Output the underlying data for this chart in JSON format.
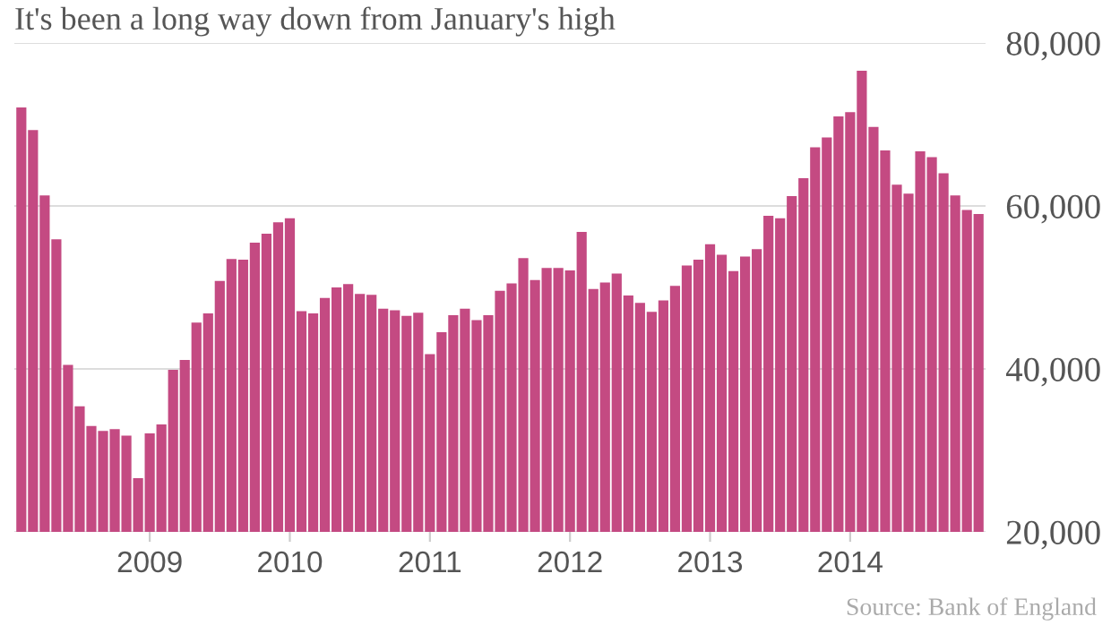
{
  "chart_data": {
    "type": "bar",
    "title": "It's been a long way down from January's high",
    "categories": [
      null,
      null,
      null,
      null,
      null,
      null,
      null,
      null,
      null,
      null,
      null,
      "2009",
      null,
      null,
      null,
      null,
      null,
      null,
      null,
      null,
      null,
      null,
      null,
      "2010",
      null,
      null,
      null,
      null,
      null,
      null,
      null,
      null,
      null,
      null,
      null,
      "2011",
      null,
      null,
      null,
      null,
      null,
      null,
      null,
      null,
      null,
      null,
      null,
      "2012",
      null,
      null,
      null,
      null,
      null,
      null,
      null,
      null,
      null,
      null,
      null,
      "2013",
      null,
      null,
      null,
      null,
      null,
      null,
      null,
      null,
      null,
      null,
      null,
      "2014",
      null,
      null,
      null,
      null,
      null,
      null,
      null,
      null,
      null,
      null,
      null
    ],
    "values": [
      72100,
      69300,
      61300,
      55900,
      40500,
      35400,
      33000,
      32400,
      32600,
      31800,
      26600,
      32100,
      33200,
      39900,
      41100,
      45700,
      46800,
      50800,
      53500,
      53400,
      55500,
      56600,
      58000,
      58500,
      47100,
      46800,
      48700,
      50000,
      50400,
      49200,
      49100,
      47400,
      47200,
      46500,
      46900,
      41800,
      44500,
      46600,
      47400,
      46000,
      46600,
      49600,
      50500,
      53600,
      50900,
      52400,
      52400,
      52100,
      56800,
      49800,
      50600,
      51700,
      49000,
      48100,
      47000,
      48400,
      50200,
      52700,
      53400,
      55300,
      54000,
      52000,
      53800,
      54700,
      58800,
      58500,
      61200,
      63400,
      67200,
      68400,
      71000,
      71500,
      76600,
      69700,
      66800,
      62600,
      61500,
      66700,
      66000,
      64000,
      61300,
      59500,
      59000
    ],
    "color": "#c44a82",
    "ylim": [
      20000,
      80000
    ],
    "yticks": [
      {
        "value": 20000,
        "label": "20,000"
      },
      {
        "value": 40000,
        "label": "40,000"
      },
      {
        "value": 60000,
        "label": "60,000"
      },
      {
        "value": 80000,
        "label": "80,000"
      }
    ],
    "grid": "y",
    "annotations": [
      "Source: Bank of England"
    ]
  }
}
